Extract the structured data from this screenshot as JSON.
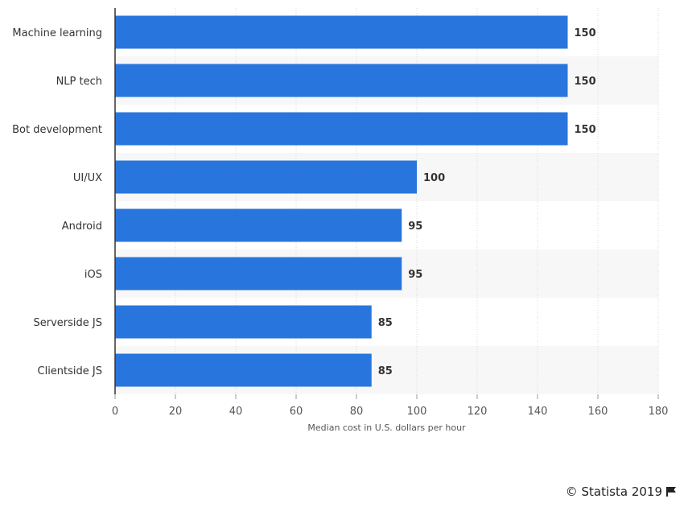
{
  "chart_data": {
    "type": "bar",
    "orientation": "horizontal",
    "categories": [
      "Machine learning",
      "NLP tech",
      "Bot development",
      "UI/UX",
      "Android",
      "iOS",
      "Serverside JS",
      "Clientside JS"
    ],
    "values": [
      150,
      150,
      150,
      100,
      95,
      95,
      85,
      85
    ],
    "value_labels": [
      "150",
      "150",
      "150",
      "100",
      "95",
      "95",
      "85",
      "85"
    ],
    "xlabel": "Median cost in U.S. dollars per hour",
    "ylabel": "",
    "xlim": [
      0,
      180
    ],
    "xticks": [
      0,
      20,
      40,
      60,
      80,
      100,
      120,
      140,
      160,
      180
    ],
    "grid": "vertical",
    "bar_color": "#2876dd",
    "band_color": "#f7f7f7"
  },
  "credit": {
    "text": "© Statista 2019",
    "icon": "flag-icon"
  }
}
